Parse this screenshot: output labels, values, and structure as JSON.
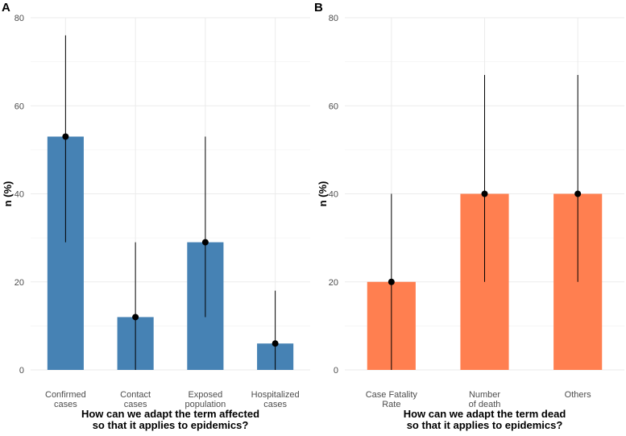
{
  "chart_data": [
    {
      "type": "bar",
      "panel_label": "A",
      "categories": [
        [
          "Confirmed",
          "cases"
        ],
        [
          "Contact",
          "cases"
        ],
        [
          "Exposed",
          "population"
        ],
        [
          "Hospitalized",
          "cases"
        ]
      ],
      "values": [
        53,
        12,
        29,
        6
      ],
      "error_low": [
        29,
        0,
        12,
        0
      ],
      "error_high": [
        76,
        29,
        53,
        18
      ],
      "bar_color": "#4682b4",
      "ylabel": "n (%)",
      "xlabel": [
        "How can we adapt the term affected",
        "so that it applies to epidemics?"
      ],
      "ylim": [
        0,
        80
      ],
      "yticks": [
        0,
        20,
        40,
        60,
        80
      ]
    },
    {
      "type": "bar",
      "panel_label": "B",
      "categories": [
        [
          "Case Fatality",
          "Rate"
        ],
        [
          "Number",
          "of death"
        ],
        [
          "Others"
        ]
      ],
      "values": [
        20,
        40,
        40
      ],
      "error_low": [
        0,
        20,
        20
      ],
      "error_high": [
        40,
        67,
        67
      ],
      "bar_color": "#ff7f50",
      "ylabel": "n (%)",
      "xlabel": [
        "How can we adapt the term dead",
        "so that it applies to epidemics?"
      ],
      "ylim": [
        0,
        80
      ],
      "yticks": [
        0,
        20,
        40,
        60,
        80
      ]
    }
  ]
}
